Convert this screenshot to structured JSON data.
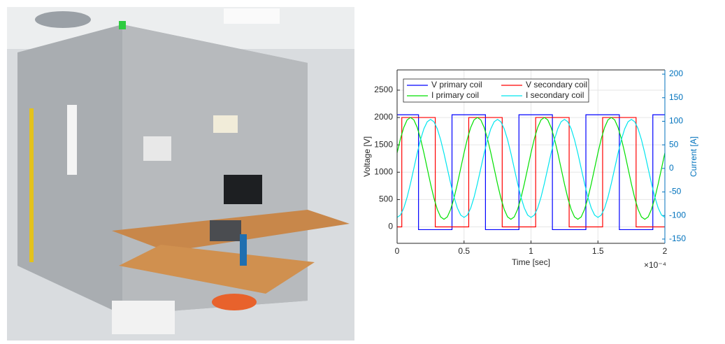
{
  "chart_data": {
    "type": "line",
    "xlabel": "Time [sec]",
    "ylabel": "Voltage [V]",
    "y2label": "Current [A]",
    "x_exponent_label": "×10⁻⁴",
    "xlim": [
      0,
      0.0002
    ],
    "xticks": [
      0,
      {
        "value": 5e-05,
        "label": "0.5"
      },
      {
        "value": 0.0001,
        "label": "1"
      },
      {
        "value": 0.00015,
        "label": "1.5"
      },
      {
        "value": 0.0002,
        "label": "2"
      }
    ],
    "ylim": [
      -300,
      2870
    ],
    "yticks": [
      0,
      500,
      1000,
      1500,
      2000,
      2500
    ],
    "y2lim": [
      -159,
      209
    ],
    "y2ticks": [
      -150,
      -100,
      -50,
      0,
      50,
      100,
      150,
      200
    ],
    "y2_color": "#0072bd",
    "grid": true,
    "legend": "northwest",
    "series": [
      {
        "name": "V primary coil",
        "color": "#0000ff",
        "x": [
          0,
          1.6e-05,
          1.6e-05,
          4.1e-05,
          4.1e-05,
          6.6e-05,
          6.6e-05,
          9.1e-05,
          9.1e-05,
          0.000116,
          0.000116,
          0.000141,
          0.000141,
          0.000166,
          0.000166,
          0.000191,
          0.000191,
          0.0002
        ],
        "values": [
          2050,
          2050,
          -50,
          -50,
          2050,
          2050,
          -50,
          -50,
          2050,
          2050,
          -50,
          -50,
          2050,
          2050,
          -50,
          -50,
          2050,
          2050
        ]
      },
      {
        "name": "V secondary coil",
        "color": "#ff0000",
        "x": [
          0,
          3.5e-06,
          3.5e-06,
          2.85e-05,
          2.85e-05,
          5.35e-05,
          5.35e-05,
          7.85e-05,
          7.85e-05,
          0.0001035,
          0.0001035,
          0.0001285,
          0.0001285,
          0.0001535,
          0.0001535,
          0.0001785,
          0.0001785,
          0.0002
        ],
        "values": [
          0,
          0,
          2000,
          2000,
          0,
          0,
          2000,
          2000,
          0,
          0,
          2000,
          2000,
          0,
          0,
          2000,
          2000,
          0,
          0
        ]
      },
      {
        "name": "I primary coil",
        "color": "#00e000",
        "axis": "y2",
        "x": [
          0,
          2.5e-06,
          5e-06,
          7.5e-06,
          1e-05,
          1.25e-05,
          1.5e-05,
          1.75e-05,
          2e-05,
          2.25e-05,
          2.5e-05,
          2.75e-05,
          3e-05,
          3.25e-05,
          3.5e-05,
          3.75e-05,
          4e-05,
          4.25e-05,
          4.5e-05,
          4.75e-05,
          5e-05,
          5.25e-05,
          5.5e-05,
          5.75e-05,
          6e-05,
          6.25e-05,
          6.5e-05,
          6.75e-05,
          7e-05,
          7.25e-05,
          7.5e-05,
          7.75e-05,
          8e-05,
          8.25e-05,
          8.5e-05,
          8.75e-05,
          9e-05,
          9.25e-05,
          9.5e-05,
          9.75e-05,
          0.0001,
          0.0001025,
          0.000105,
          0.0001075,
          0.00011,
          0.0001125,
          0.000115,
          0.0001175,
          0.00012,
          0.0001225,
          0.000125,
          0.0001275,
          0.00013,
          0.0001325,
          0.000135,
          0.0001375,
          0.00014,
          0.0001425,
          0.000145,
          0.0001475,
          0.00015,
          0.0001525,
          0.000155,
          0.0001575,
          0.00016,
          0.0001625,
          0.000165,
          0.0001675,
          0.00017,
          0.0001725,
          0.000175,
          0.0001775,
          0.00018,
          0.0001825,
          0.000185,
          0.0001875,
          0.00019,
          0.0001925,
          0.000195,
          0.0001975,
          0.0002
        ],
        "values": [
          33,
          63,
          87,
          103,
          108,
          103,
          87,
          63,
          33,
          0,
          -33,
          -63,
          -87,
          -103,
          -108,
          -103,
          -87,
          -63,
          -33,
          0,
          33,
          63,
          87,
          103,
          108,
          103,
          87,
          63,
          33,
          0,
          -33,
          -63,
          -87,
          -103,
          -108,
          -103,
          -87,
          -63,
          -33,
          0,
          33,
          63,
          87,
          103,
          108,
          103,
          87,
          63,
          33,
          0,
          -33,
          -63,
          -87,
          -103,
          -108,
          -103,
          -87,
          -63,
          -33,
          0,
          33,
          63,
          87,
          103,
          108,
          103,
          87,
          63,
          33,
          0,
          -33,
          -63,
          -87,
          -103,
          -108,
          -103,
          -87,
          -63,
          -33,
          0,
          33
        ]
      },
      {
        "name": "I secondary coil",
        "color": "#00e5ee",
        "axis": "y2",
        "x": [
          0,
          2.5e-06,
          5e-06,
          7.5e-06,
          1e-05,
          1.25e-05,
          1.5e-05,
          1.75e-05,
          2e-05,
          2.25e-05,
          2.5e-05,
          2.75e-05,
          3e-05,
          3.25e-05,
          3.5e-05,
          3.75e-05,
          4e-05,
          4.25e-05,
          4.5e-05,
          4.75e-05,
          5e-05,
          5.25e-05,
          5.5e-05,
          5.75e-05,
          6e-05,
          6.25e-05,
          6.5e-05,
          6.75e-05,
          7e-05,
          7.25e-05,
          7.5e-05,
          7.75e-05,
          8e-05,
          8.25e-05,
          8.5e-05,
          8.75e-05,
          9e-05,
          9.25e-05,
          9.5e-05,
          9.75e-05,
          0.0001,
          0.0001025,
          0.000105,
          0.0001075,
          0.00011,
          0.0001125,
          0.000115,
          0.0001175,
          0.00012,
          0.0001225,
          0.000125,
          0.0001275,
          0.00013,
          0.0001325,
          0.000135,
          0.0001375,
          0.00014,
          0.0001425,
          0.000145,
          0.0001475,
          0.00015,
          0.0001525,
          0.000155,
          0.0001575,
          0.00016,
          0.0001625,
          0.000165,
          0.0001675,
          0.00017,
          0.0001725,
          0.000175,
          0.0001775,
          0.00018,
          0.0001825,
          0.000185,
          0.0001875,
          0.00019,
          0.0001925,
          0.000195,
          0.0001975,
          0.0002
        ],
        "values": [
          -104,
          -99,
          -84,
          -61,
          -32,
          0,
          32,
          61,
          84,
          99,
          104,
          99,
          84,
          61,
          32,
          0,
          -32,
          -61,
          -84,
          -99,
          -104,
          -99,
          -84,
          -61,
          -32,
          0,
          32,
          61,
          84,
          99,
          104,
          99,
          84,
          61,
          32,
          0,
          -32,
          -61,
          -84,
          -99,
          -104,
          -99,
          -84,
          -61,
          -32,
          0,
          32,
          61,
          84,
          99,
          104,
          99,
          84,
          61,
          32,
          0,
          -32,
          -61,
          -84,
          -99,
          -104,
          -99,
          -84,
          -61,
          -32,
          0,
          32,
          61,
          84,
          99,
          104,
          99,
          84,
          61,
          32,
          0,
          -32,
          -61,
          -84,
          -99,
          -104
        ]
      }
    ]
  }
}
